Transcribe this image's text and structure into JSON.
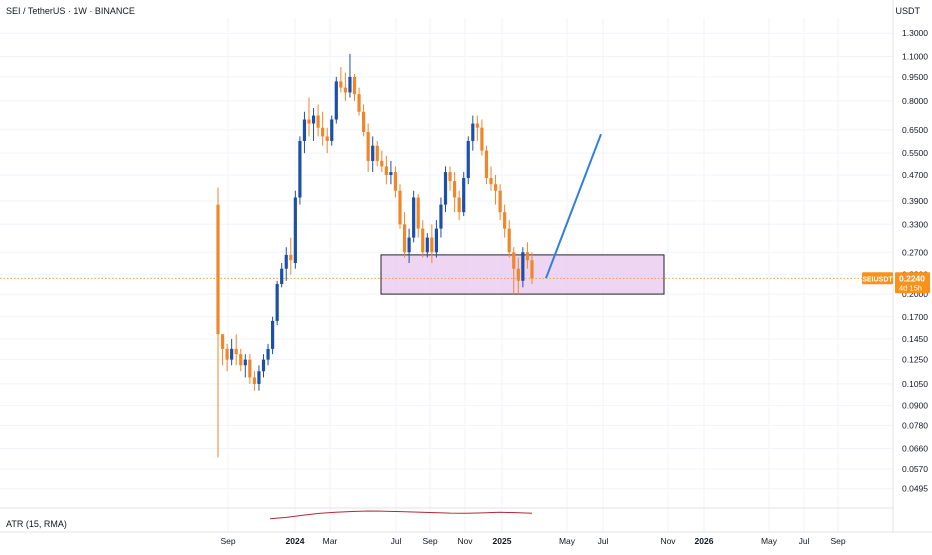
{
  "header": {
    "title": "SEI / TetherUS · 1W · BINANCE",
    "currency": "USDT"
  },
  "price_tag": {
    "symbol": "SEIUSDT",
    "price": "0.2240",
    "countdown": "4d 15h",
    "color": "#f7931a"
  },
  "indicator": {
    "label": "ATR (15, RMA)",
    "color": "#b22833"
  },
  "colors": {
    "up": "#1e4fa8",
    "down": "#f0862a",
    "zone_fill": "#e7c4ec",
    "zone_stroke": "#222222",
    "projection": "#2e7fe0",
    "grid": "#f0f3fa",
    "axis_text": "#131722"
  },
  "chart_data": {
    "type": "candlestick",
    "scale": "log",
    "ylim": [
      0.045,
      1.45
    ],
    "y_ticks": [
      "1.3000",
      "1.1000",
      "0.9500",
      "0.8000",
      "0.6500",
      "0.5500",
      "0.4700",
      "0.3900",
      "0.3300",
      "0.2700",
      "0.2300",
      "0.2000",
      "0.1700",
      "0.1450",
      "0.1250",
      "0.1050",
      "0.0900",
      "0.0780",
      "0.0660",
      "0.0570",
      "0.0495"
    ],
    "x_ticks": [
      "Sep",
      "2024",
      "Mar",
      "Jul",
      "Sep",
      "Nov",
      "2025",
      "May",
      "Jul",
      "Nov",
      "2026",
      "May",
      "Jul",
      "Sep"
    ],
    "bold_x_ticks": [
      "2024",
      "2025",
      "2026"
    ],
    "last_price": 0.224,
    "candles": [
      [
        0.38,
        0.43,
        0.062,
        0.15
      ],
      [
        0.15,
        0.15,
        0.12,
        0.135
      ],
      [
        0.135,
        0.14,
        0.115,
        0.125
      ],
      [
        0.125,
        0.145,
        0.12,
        0.135
      ],
      [
        0.135,
        0.15,
        0.12,
        0.13
      ],
      [
        0.13,
        0.135,
        0.115,
        0.12
      ],
      [
        0.12,
        0.13,
        0.11,
        0.125
      ],
      [
        0.125,
        0.13,
        0.105,
        0.11
      ],
      [
        0.11,
        0.115,
        0.1,
        0.105
      ],
      [
        0.105,
        0.12,
        0.1,
        0.115
      ],
      [
        0.115,
        0.13,
        0.11,
        0.125
      ],
      [
        0.125,
        0.14,
        0.12,
        0.135
      ],
      [
        0.135,
        0.17,
        0.13,
        0.165
      ],
      [
        0.165,
        0.22,
        0.16,
        0.215
      ],
      [
        0.215,
        0.25,
        0.21,
        0.24
      ],
      [
        0.24,
        0.28,
        0.22,
        0.265
      ],
      [
        0.265,
        0.3,
        0.23,
        0.255
      ],
      [
        0.25,
        0.42,
        0.24,
        0.4
      ],
      [
        0.4,
        0.62,
        0.38,
        0.6
      ],
      [
        0.6,
        0.74,
        0.55,
        0.7
      ],
      [
        0.7,
        0.82,
        0.62,
        0.68
      ],
      [
        0.68,
        0.76,
        0.6,
        0.72
      ],
      [
        0.72,
        0.78,
        0.62,
        0.66
      ],
      [
        0.66,
        0.74,
        0.58,
        0.62
      ],
      [
        0.62,
        0.66,
        0.55,
        0.6
      ],
      [
        0.6,
        0.72,
        0.58,
        0.7
      ],
      [
        0.7,
        0.95,
        0.68,
        0.92
      ],
      [
        0.92,
        1.02,
        0.85,
        0.88
      ],
      [
        0.88,
        0.98,
        0.8,
        0.85
      ],
      [
        0.85,
        1.12,
        0.82,
        0.95
      ],
      [
        0.95,
        0.97,
        0.8,
        0.84
      ],
      [
        0.84,
        0.88,
        0.72,
        0.74
      ],
      [
        0.74,
        0.78,
        0.62,
        0.64
      ],
      [
        0.64,
        0.68,
        0.48,
        0.52
      ],
      [
        0.52,
        0.62,
        0.48,
        0.58
      ],
      [
        0.58,
        0.6,
        0.5,
        0.52
      ],
      [
        0.52,
        0.56,
        0.48,
        0.5
      ],
      [
        0.5,
        0.54,
        0.44,
        0.47
      ],
      [
        0.47,
        0.52,
        0.44,
        0.48
      ],
      [
        0.48,
        0.5,
        0.4,
        0.42
      ],
      [
        0.42,
        0.44,
        0.32,
        0.33
      ],
      [
        0.33,
        0.36,
        0.26,
        0.27
      ],
      [
        0.27,
        0.32,
        0.25,
        0.3
      ],
      [
        0.3,
        0.42,
        0.29,
        0.4
      ],
      [
        0.4,
        0.41,
        0.3,
        0.32
      ],
      [
        0.32,
        0.34,
        0.26,
        0.27
      ],
      [
        0.27,
        0.31,
        0.26,
        0.3
      ],
      [
        0.3,
        0.33,
        0.25,
        0.27
      ],
      [
        0.27,
        0.34,
        0.26,
        0.32
      ],
      [
        0.32,
        0.4,
        0.3,
        0.38
      ],
      [
        0.38,
        0.5,
        0.36,
        0.48
      ],
      [
        0.48,
        0.5,
        0.42,
        0.45
      ],
      [
        0.45,
        0.48,
        0.36,
        0.4
      ],
      [
        0.4,
        0.42,
        0.34,
        0.36
      ],
      [
        0.36,
        0.48,
        0.35,
        0.46
      ],
      [
        0.46,
        0.62,
        0.44,
        0.6
      ],
      [
        0.6,
        0.72,
        0.56,
        0.68
      ],
      [
        0.68,
        0.72,
        0.6,
        0.66
      ],
      [
        0.66,
        0.7,
        0.54,
        0.56
      ],
      [
        0.56,
        0.58,
        0.44,
        0.46
      ],
      [
        0.46,
        0.5,
        0.42,
        0.44
      ],
      [
        0.44,
        0.47,
        0.38,
        0.42
      ],
      [
        0.42,
        0.44,
        0.34,
        0.36
      ],
      [
        0.36,
        0.38,
        0.3,
        0.32
      ],
      [
        0.32,
        0.34,
        0.26,
        0.27
      ],
      [
        0.27,
        0.28,
        0.2,
        0.24
      ],
      [
        0.24,
        0.26,
        0.2,
        0.22
      ],
      [
        0.22,
        0.28,
        0.21,
        0.27
      ],
      [
        0.27,
        0.29,
        0.24,
        0.255
      ],
      [
        0.255,
        0.27,
        0.215,
        0.224
      ]
    ],
    "atr": [
      0.52,
      0.6,
      0.74,
      0.85,
      0.92,
      0.97,
      1.0,
      0.99,
      0.96,
      0.93,
      0.9,
      0.87,
      0.86,
      0.88,
      0.92,
      0.9,
      0.86
    ],
    "support_zone": {
      "low": 0.2,
      "high": 0.265
    },
    "projection": {
      "from_price": 0.224,
      "to_price": 0.63
    }
  }
}
